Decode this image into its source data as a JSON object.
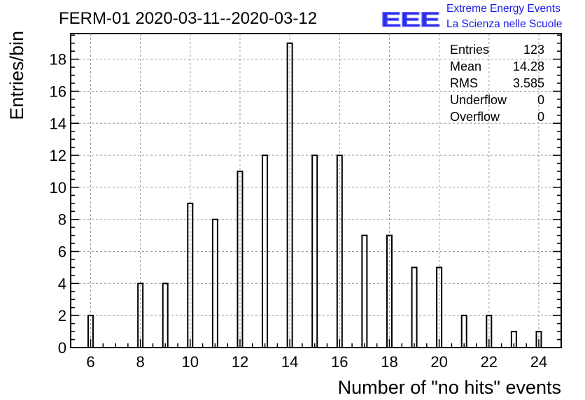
{
  "chart_data": {
    "type": "bar",
    "title": "FERM-01 2020-03-11--2020-03-12",
    "xlabel": "Number of \"no hits\" events",
    "ylabel": "Entries/bin",
    "xlim": [
      5.2,
      24.9
    ],
    "ylim": [
      0,
      19.6
    ],
    "x_ticks": [
      6,
      8,
      10,
      12,
      14,
      16,
      18,
      20,
      22,
      24
    ],
    "y_ticks": [
      0,
      2,
      4,
      6,
      8,
      10,
      12,
      14,
      16,
      18
    ],
    "grid": true,
    "series": [
      {
        "x": [
          6,
          8,
          9,
          10,
          11,
          12,
          13,
          14,
          15,
          16,
          17,
          18,
          19,
          20,
          21,
          22,
          23,
          24
        ],
        "values": [
          2,
          4,
          4,
          9,
          8,
          11,
          12,
          19,
          12,
          12,
          7,
          7,
          5,
          5,
          2,
          2,
          1,
          1
        ]
      }
    ],
    "stats": [
      {
        "label": "Entries",
        "value": "123"
      },
      {
        "label": "Mean",
        "value": "14.28"
      },
      {
        "label": "RMS",
        "value": "3.585"
      },
      {
        "label": "Underflow",
        "value": "0"
      },
      {
        "label": "Overflow",
        "value": "0"
      }
    ]
  },
  "logo": {
    "mark": "EEE",
    "line1": "Extreme Energy Events",
    "line2": "La Scienza nelle Scuole",
    "color": "#1a1ae6"
  }
}
